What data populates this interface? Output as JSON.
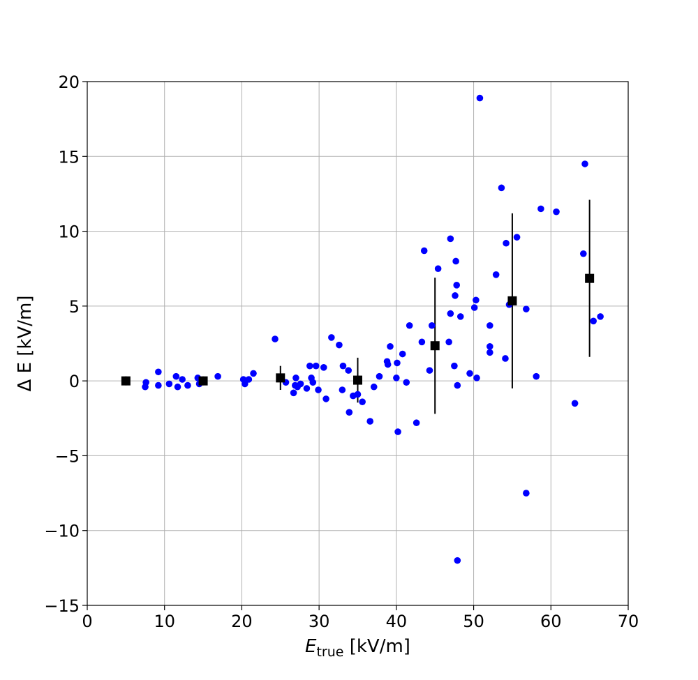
{
  "chart_data": {
    "type": "scatter",
    "title": "",
    "xlabel": {
      "main": "E",
      "sub": "true",
      "unit": " [kV/m]"
    },
    "ylabel": "Δ E [kV/m]",
    "xlim": [
      0,
      70
    ],
    "ylim": [
      -15,
      20
    ],
    "xticks": [
      0,
      10,
      20,
      30,
      40,
      50,
      60,
      70
    ],
    "yticks": [
      -15,
      -10,
      -5,
      0,
      5,
      10,
      15,
      20
    ],
    "ytick_labels": [
      "−15",
      "−10",
      "−5",
      "0",
      "5",
      "10",
      "15",
      "20"
    ],
    "grid": true,
    "colors": {
      "points": "#0000ff",
      "means": "#000000",
      "grid": "#b0b0b0"
    },
    "series": [
      {
        "marker": "circle",
        "x": [
          7.5,
          7.6,
          9.2,
          9.2,
          10.6,
          11.5,
          11.7,
          12.3,
          13.0,
          14.3,
          14.5,
          16.9,
          20.2,
          20.4,
          20.9,
          21.5,
          24.3,
          25.7,
          26.7,
          26.9,
          27.0,
          27.2,
          27.6,
          28.4,
          28.8,
          29.0,
          29.2,
          29.6,
          29.9,
          30.6,
          30.9,
          31.6,
          32.6,
          33.0,
          33.1,
          33.8,
          33.9,
          34.4,
          35.0,
          35.6,
          36.6,
          37.1,
          37.8,
          38.8,
          38.9,
          39.2,
          40.0,
          40.1,
          40.2,
          40.8,
          41.3,
          41.7,
          42.6,
          43.3,
          43.6,
          44.3,
          44.6,
          45.4,
          46.8,
          47.0,
          47.0,
          47.5,
          47.6,
          47.7,
          47.8,
          47.9,
          47.9,
          48.3,
          49.5,
          50.1,
          50.3,
          50.4,
          50.8,
          52.1,
          52.1,
          52.1,
          52.9,
          53.6,
          54.1,
          54.2,
          54.6,
          55.6,
          56.8,
          56.8,
          58.1,
          58.7,
          60.7,
          63.1,
          64.2,
          64.4,
          65.5,
          66.4
        ],
        "y": [
          -0.4,
          -0.1,
          0.6,
          -0.3,
          -0.2,
          0.3,
          -0.4,
          0.1,
          -0.3,
          0.2,
          -0.2,
          0.3,
          0.1,
          -0.2,
          0.1,
          0.5,
          2.8,
          -0.1,
          -0.8,
          -0.3,
          0.2,
          -0.4,
          -0.2,
          -0.5,
          1.0,
          0.2,
          -0.1,
          1.0,
          -0.6,
          0.9,
          -1.2,
          2.9,
          2.4,
          -0.6,
          1.0,
          0.7,
          -2.1,
          -1.0,
          -0.9,
          -1.4,
          -2.7,
          -0.4,
          0.3,
          1.3,
          1.1,
          2.3,
          0.2,
          1.2,
          -3.4,
          1.8,
          -0.1,
          3.7,
          -2.8,
          2.6,
          8.7,
          0.7,
          3.7,
          7.5,
          2.6,
          9.5,
          4.5,
          1.0,
          5.7,
          8.0,
          6.4,
          -0.3,
          -12.0,
          4.3,
          0.5,
          4.9,
          5.4,
          0.2,
          18.9,
          3.7,
          2.3,
          1.9,
          7.1,
          12.9,
          1.5,
          9.2,
          5.1,
          9.6,
          4.8,
          -7.5,
          0.3,
          11.5,
          11.3,
          -1.5,
          8.5,
          14.5,
          4.0,
          4.3
        ]
      },
      {
        "marker": "square",
        "x": [
          5,
          15,
          25,
          35,
          45,
          55,
          65
        ],
        "y": [
          0.0,
          0.0,
          0.2,
          0.05,
          2.35,
          5.35,
          6.85
        ],
        "yerr": [
          0.3,
          0.3,
          0.8,
          1.5,
          4.55,
          5.85,
          5.25
        ]
      }
    ]
  }
}
